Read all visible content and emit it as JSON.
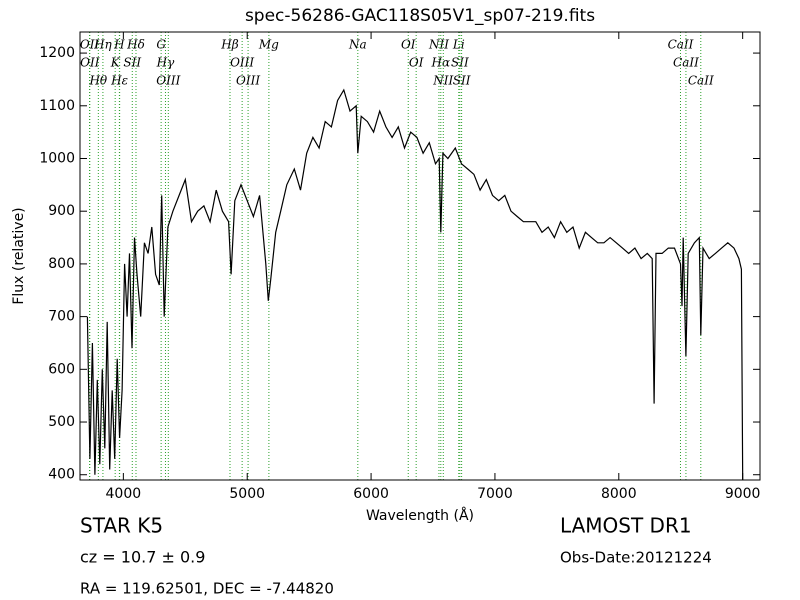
{
  "chart_data": {
    "type": "line",
    "title": "spec-56286-GAC118S05V1_sp07-219.fits",
    "x_label": "Wavelength (Å)",
    "y_label": "Flux (relative)",
    "color": "#000000",
    "xlim": [
      3650,
      9140
    ],
    "ylim": [
      390,
      1240
    ],
    "xticks": [
      4000,
      5000,
      6000,
      7000,
      8000,
      9000
    ],
    "yticks": [
      400,
      500,
      600,
      700,
      800,
      900,
      1000,
      1100,
      1200
    ],
    "x": [
      3710,
      3730,
      3750,
      3770,
      3790,
      3810,
      3830,
      3850,
      3870,
      3890,
      3910,
      3930,
      3950,
      3970,
      3990,
      4010,
      4030,
      4050,
      4070,
      4090,
      4110,
      4140,
      4170,
      4200,
      4230,
      4260,
      4290,
      4310,
      4330,
      4360,
      4400,
      4450,
      4500,
      4550,
      4600,
      4650,
      4700,
      4750,
      4800,
      4850,
      4870,
      4900,
      4950,
      5000,
      5050,
      5100,
      5150,
      5170,
      5190,
      5230,
      5270,
      5320,
      5380,
      5430,
      5480,
      5530,
      5580,
      5630,
      5680,
      5730,
      5780,
      5830,
      5880,
      5893,
      5920,
      5970,
      6020,
      6070,
      6120,
      6170,
      6220,
      6270,
      6320,
      6370,
      6420,
      6470,
      6520,
      6550,
      6563,
      6580,
      6620,
      6680,
      6730,
      6780,
      6830,
      6880,
      6930,
      6980,
      7030,
      7080,
      7130,
      7180,
      7230,
      7280,
      7330,
      7380,
      7430,
      7480,
      7530,
      7580,
      7630,
      7680,
      7730,
      7780,
      7830,
      7880,
      7930,
      7980,
      8030,
      8080,
      8130,
      8180,
      8230,
      8270,
      8285,
      8300,
      8350,
      8400,
      8450,
      8498,
      8510,
      8520,
      8542,
      8560,
      8610,
      8650,
      8662,
      8680,
      8730,
      8780,
      8830,
      8880,
      8930,
      8970,
      8990,
      9000
    ],
    "values": [
      700,
      430,
      650,
      400,
      580,
      420,
      600,
      450,
      690,
      410,
      560,
      430,
      620,
      470,
      560,
      800,
      700,
      820,
      640,
      850,
      780,
      700,
      840,
      820,
      870,
      780,
      760,
      930,
      700,
      870,
      900,
      930,
      960,
      880,
      900,
      910,
      880,
      940,
      900,
      880,
      780,
      920,
      950,
      920,
      890,
      930,
      800,
      730,
      770,
      860,
      900,
      950,
      980,
      940,
      1010,
      1040,
      1020,
      1070,
      1060,
      1110,
      1130,
      1090,
      1100,
      1010,
      1080,
      1070,
      1050,
      1090,
      1060,
      1040,
      1060,
      1020,
      1050,
      1040,
      1010,
      1030,
      990,
      1000,
      860,
      1010,
      1000,
      1020,
      990,
      980,
      970,
      940,
      960,
      930,
      920,
      930,
      900,
      890,
      880,
      880,
      880,
      860,
      870,
      850,
      880,
      860,
      870,
      830,
      860,
      850,
      840,
      840,
      850,
      840,
      830,
      820,
      830,
      810,
      820,
      810,
      535,
      820,
      820,
      830,
      830,
      800,
      720,
      850,
      625,
      820,
      840,
      850,
      665,
      830,
      810,
      820,
      830,
      840,
      830,
      810,
      790,
      390
    ],
    "line_marks": {
      "color": "#2ca02c",
      "lines": [
        {
          "label": "OII",
          "x": 3727
        },
        {
          "label": "OII",
          "x": 3729
        },
        {
          "label": "Hθ",
          "x": 3798
        },
        {
          "label": "Hη",
          "x": 3835
        },
        {
          "label": "K",
          "x": 3934
        },
        {
          "label": "H",
          "x": 3968
        },
        {
          "label": "Hε",
          "x": 3970
        },
        {
          "label": "SII",
          "x": 4072
        },
        {
          "label": "Hδ",
          "x": 4102
        },
        {
          "label": "G",
          "x": 4305
        },
        {
          "label": "Hγ",
          "x": 4340
        },
        {
          "label": "OIII",
          "x": 4363
        },
        {
          "label": "Hβ",
          "x": 4861
        },
        {
          "label": "OIII",
          "x": 4959
        },
        {
          "label": "OIII",
          "x": 5007
        },
        {
          "label": "Mg",
          "x": 5175
        },
        {
          "label": "Na",
          "x": 5893
        },
        {
          "label": "OI",
          "x": 6300
        },
        {
          "label": "OI",
          "x": 6364
        },
        {
          "label": "NII",
          "x": 6548
        },
        {
          "label": "Hα",
          "x": 6563
        },
        {
          "label": "NII",
          "x": 6583
        },
        {
          "label": "Li",
          "x": 6708
        },
        {
          "label": "SII",
          "x": 6717
        },
        {
          "label": "SII",
          "x": 6731
        },
        {
          "label": "CaII",
          "x": 8498
        },
        {
          "label": "CaII",
          "x": 8542
        },
        {
          "label": "CaII",
          "x": 8662
        }
      ]
    },
    "annotations": {
      "object": "STAR   K5",
      "redshift": "cz = 10.7 ± 0.9",
      "coords": "RA = 119.62501, DEC = -7.44820",
      "survey": "LAMOST DR1",
      "date": "Obs-Date:20121224"
    }
  }
}
